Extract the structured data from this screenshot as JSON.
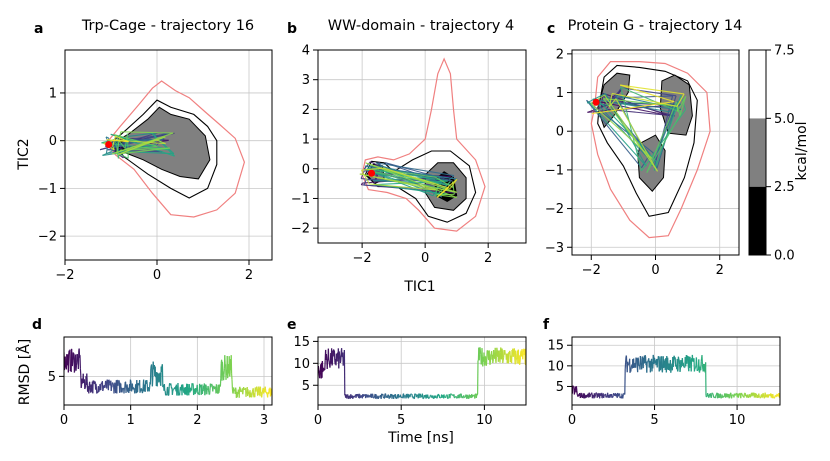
{
  "chart_data": [
    {
      "type": "contour",
      "panel": "a",
      "title": "Trp-Cage - trajectory 16",
      "xlabel": "",
      "ylabel": "TIC2",
      "xlim": [
        -2,
        2.5
      ],
      "ylim": [
        -2.5,
        1.9
      ],
      "xticks": [
        "−2",
        "0",
        "2"
      ],
      "yticks": [
        "−2",
        "−1",
        "0",
        "1"
      ],
      "grid": true,
      "start_point": {
        "x": -1.05,
        "y": -0.08
      },
      "outline_outer": [
        [
          -1.1,
          -0.05
        ],
        [
          -0.8,
          0.3
        ],
        [
          -0.4,
          0.75
        ],
        [
          -0.1,
          1.1
        ],
        [
          0.1,
          1.25
        ],
        [
          0.4,
          1.05
        ],
        [
          0.7,
          0.9
        ],
        [
          1.05,
          0.6
        ],
        [
          1.35,
          0.35
        ],
        [
          1.7,
          0.05
        ],
        [
          1.9,
          -0.45
        ],
        [
          1.7,
          -1.1
        ],
        [
          1.3,
          -1.45
        ],
        [
          0.8,
          -1.6
        ],
        [
          0.3,
          -1.55
        ],
        [
          -0.1,
          -1.1
        ],
        [
          -0.5,
          -0.6
        ],
        [
          -0.9,
          -0.3
        ]
      ],
      "outline_inner": [
        [
          -1.0,
          -0.05
        ],
        [
          -0.7,
          0.2
        ],
        [
          -0.3,
          0.55
        ],
        [
          0.0,
          0.85
        ],
        [
          0.3,
          0.7
        ],
        [
          0.8,
          0.55
        ],
        [
          1.1,
          0.3
        ],
        [
          1.3,
          0.0
        ],
        [
          1.3,
          -0.5
        ],
        [
          1.1,
          -1.0
        ],
        [
          0.7,
          -1.2
        ],
        [
          0.3,
          -1.0
        ],
        [
          -0.2,
          -0.7
        ],
        [
          -0.7,
          -0.35
        ]
      ],
      "basin_gray": [
        [
          -0.95,
          -0.05
        ],
        [
          -0.6,
          0.15
        ],
        [
          -0.2,
          0.45
        ],
        [
          0.05,
          0.7
        ],
        [
          0.3,
          0.55
        ],
        [
          0.7,
          0.45
        ],
        [
          1.05,
          0.1
        ],
        [
          1.15,
          -0.4
        ],
        [
          0.9,
          -0.8
        ],
        [
          0.5,
          -0.75
        ],
        [
          0.1,
          -0.6
        ],
        [
          -0.3,
          -0.4
        ],
        [
          -0.7,
          -0.25
        ]
      ],
      "basin_black": [
        [
          -1.0,
          -0.1
        ],
        [
          -0.75,
          0.02
        ],
        [
          -0.7,
          -0.18
        ],
        [
          -0.9,
          -0.22
        ]
      ]
    },
    {
      "type": "contour",
      "panel": "b",
      "title": "WW-domain - trajectory 4",
      "xlabel": "TIC1",
      "ylabel": "",
      "xlim": [
        -3.4,
        3.2
      ],
      "ylim": [
        -2.5,
        4
      ],
      "xticks": [
        "−2",
        "0",
        "2"
      ],
      "yticks": [
        "−2",
        "−1",
        "0",
        "1",
        "2",
        "3",
        "4"
      ],
      "grid": true,
      "start_point": {
        "x": -1.7,
        "y": -0.15
      },
      "outline_outer": [
        [
          -2.0,
          -0.2
        ],
        [
          -1.9,
          0.3
        ],
        [
          -1.5,
          0.4
        ],
        [
          -1.0,
          0.3
        ],
        [
          -0.5,
          0.5
        ],
        [
          0.0,
          1.0
        ],
        [
          0.2,
          2.0
        ],
        [
          0.4,
          3.2
        ],
        [
          0.6,
          3.7
        ],
        [
          0.8,
          3.2
        ],
        [
          0.9,
          2.0
        ],
        [
          1.0,
          1.0
        ],
        [
          1.6,
          0.3
        ],
        [
          1.9,
          -0.6
        ],
        [
          1.6,
          -1.6
        ],
        [
          1.0,
          -2.1
        ],
        [
          0.3,
          -2.0
        ],
        [
          -0.2,
          -1.4
        ],
        [
          -0.6,
          -1.0
        ],
        [
          -1.2,
          -0.8
        ],
        [
          -1.8,
          -0.7
        ]
      ],
      "outline_inner": [
        [
          -1.9,
          -0.2
        ],
        [
          -1.7,
          0.25
        ],
        [
          -1.3,
          0.2
        ],
        [
          -1.0,
          -0.1
        ],
        [
          -0.4,
          0.3
        ],
        [
          0.2,
          0.6
        ],
        [
          0.8,
          0.6
        ],
        [
          1.4,
          0.1
        ],
        [
          1.6,
          -0.8
        ],
        [
          1.3,
          -1.5
        ],
        [
          0.7,
          -1.8
        ],
        [
          0.1,
          -1.6
        ],
        [
          -0.3,
          -1.0
        ],
        [
          -0.9,
          -0.6
        ],
        [
          -1.5,
          -0.6
        ]
      ],
      "basin_gray_1": [
        [
          -1.85,
          -0.2
        ],
        [
          -1.65,
          0.15
        ],
        [
          -1.35,
          0.1
        ],
        [
          -1.3,
          -0.35
        ],
        [
          -1.6,
          -0.5
        ]
      ],
      "basin_gray_2": [
        [
          0.0,
          -0.2
        ],
        [
          0.4,
          0.2
        ],
        [
          0.9,
          0.2
        ],
        [
          1.3,
          -0.3
        ],
        [
          1.3,
          -1.0
        ],
        [
          0.9,
          -1.4
        ],
        [
          0.3,
          -1.3
        ],
        [
          0.0,
          -0.8
        ]
      ],
      "basin_black": [
        [
          0.3,
          -0.4
        ],
        [
          0.6,
          -0.1
        ],
        [
          0.9,
          -0.3
        ],
        [
          1.0,
          -0.9
        ],
        [
          0.7,
          -1.1
        ],
        [
          0.35,
          -0.9
        ]
      ]
    },
    {
      "type": "contour",
      "panel": "c",
      "title": "Protein G - trajectory 14",
      "xlabel": "",
      "ylabel": "",
      "xlim": [
        -2.6,
        2.6
      ],
      "ylim": [
        -3.2,
        2.1
      ],
      "xticks": [
        "−2",
        "0",
        "2"
      ],
      "yticks": [
        "−3",
        "−2",
        "−1",
        "0",
        "1",
        "2"
      ],
      "grid": true,
      "start_point": {
        "x": -1.85,
        "y": 0.75
      },
      "outline_outer": [
        [
          -1.9,
          0.6
        ],
        [
          -1.8,
          1.4
        ],
        [
          -1.4,
          1.8
        ],
        [
          -0.5,
          1.8
        ],
        [
          0.3,
          1.75
        ],
        [
          1.0,
          1.5
        ],
        [
          1.6,
          1.0
        ],
        [
          1.7,
          0.0
        ],
        [
          1.3,
          -1.0
        ],
        [
          0.8,
          -2.0
        ],
        [
          0.4,
          -2.7
        ],
        [
          -0.2,
          -2.75
        ],
        [
          -0.8,
          -2.3
        ],
        [
          -1.4,
          -1.5
        ],
        [
          -1.8,
          -0.6
        ],
        [
          -2.0,
          0.2
        ]
      ],
      "outline_inner": [
        [
          -1.75,
          0.7
        ],
        [
          -1.6,
          1.4
        ],
        [
          -1.2,
          1.7
        ],
        [
          -0.5,
          1.65
        ],
        [
          0.3,
          1.55
        ],
        [
          1.0,
          1.3
        ],
        [
          1.3,
          0.8
        ],
        [
          1.2,
          -0.3
        ],
        [
          0.9,
          -1.2
        ],
        [
          0.4,
          -2.1
        ],
        [
          -0.2,
          -2.2
        ],
        [
          -0.6,
          -1.6
        ],
        [
          -1.0,
          -0.9
        ],
        [
          -1.5,
          -0.3
        ],
        [
          -1.8,
          0.2
        ]
      ],
      "basin_gray_1": [
        [
          -1.8,
          0.6
        ],
        [
          -1.6,
          1.2
        ],
        [
          -1.2,
          1.5
        ],
        [
          -0.8,
          1.45
        ],
        [
          -0.85,
          1.0
        ],
        [
          -1.3,
          0.4
        ],
        [
          -1.6,
          0.1
        ]
      ],
      "basin_gray_2": [
        [
          0.2,
          1.3
        ],
        [
          0.6,
          1.45
        ],
        [
          1.05,
          1.2
        ],
        [
          1.15,
          0.4
        ],
        [
          0.95,
          -0.1
        ],
        [
          0.4,
          -0.05
        ],
        [
          0.15,
          0.6
        ]
      ],
      "basin_gray_3": [
        [
          -0.45,
          -0.3
        ],
        [
          0.0,
          -0.1
        ],
        [
          0.3,
          -0.5
        ],
        [
          0.25,
          -1.2
        ],
        [
          -0.1,
          -1.55
        ],
        [
          -0.5,
          -1.2
        ],
        [
          -0.55,
          -0.6
        ]
      ],
      "colorbar": {
        "label": "kcal/mol",
        "ticks": [
          "0.0",
          "2.5",
          "5.0",
          "7.5"
        ],
        "levels": [
          {
            "from": 0,
            "to": 2.5,
            "color": "#000000"
          },
          {
            "from": 2.5,
            "to": 5.0,
            "color": "#808080"
          },
          {
            "from": 5.0,
            "to": 7.5,
            "color": "#ffffff"
          }
        ]
      }
    },
    {
      "type": "line",
      "panel": "d",
      "xlabel": "",
      "ylabel": "RMSD [Å]",
      "xlim": [
        0,
        3.12
      ],
      "ylim": [
        1,
        10.5
      ],
      "xticks": [
        "0",
        "1",
        "2",
        "3"
      ],
      "yticks": [
        "5"
      ],
      "grid": true,
      "colormap": "viridis",
      "segments": [
        {
          "from": 0.0,
          "to": 0.25,
          "mean": 7.2,
          "noise": 1.7
        },
        {
          "from": 0.25,
          "to": 0.35,
          "mean": 4.2,
          "noise": 1.2
        },
        {
          "from": 0.35,
          "to": 1.3,
          "mean": 3.6,
          "noise": 1.0
        },
        {
          "from": 1.3,
          "to": 1.48,
          "mean": 5.4,
          "noise": 1.8
        },
        {
          "from": 1.48,
          "to": 2.35,
          "mean": 3.2,
          "noise": 0.9
        },
        {
          "from": 2.35,
          "to": 2.52,
          "mean": 6.2,
          "noise": 1.8
        },
        {
          "from": 2.52,
          "to": 3.12,
          "mean": 2.8,
          "noise": 0.8
        }
      ]
    },
    {
      "type": "line",
      "panel": "e",
      "xlabel": "Time [ns]",
      "ylabel": "",
      "xlim": [
        0,
        12.5
      ],
      "ylim": [
        0.5,
        16
      ],
      "xticks": [
        "0",
        "5",
        "10"
      ],
      "yticks": [
        "5",
        "10",
        "15"
      ],
      "grid": true,
      "colormap": "viridis",
      "segments": [
        {
          "from": 0.0,
          "to": 0.4,
          "mean": 8.5,
          "noise": 2.5
        },
        {
          "from": 0.4,
          "to": 1.6,
          "mean": 11.0,
          "noise": 2.5
        },
        {
          "from": 1.6,
          "to": 9.6,
          "mean": 2.5,
          "noise": 0.6
        },
        {
          "from": 9.6,
          "to": 12.5,
          "mean": 11.5,
          "noise": 2.2
        }
      ]
    },
    {
      "type": "line",
      "panel": "f",
      "xlabel": "",
      "ylabel": "",
      "xlim": [
        0,
        12.6
      ],
      "ylim": [
        0.5,
        17
      ],
      "xticks": [
        "0",
        "5",
        "10"
      ],
      "yticks": [
        "5",
        "10",
        "15"
      ],
      "grid": true,
      "colormap": "viridis",
      "segments": [
        {
          "from": 0.0,
          "to": 0.3,
          "mean": 4.0,
          "noise": 1.3
        },
        {
          "from": 0.3,
          "to": 3.2,
          "mean": 2.8,
          "noise": 0.7
        },
        {
          "from": 3.2,
          "to": 8.1,
          "mean": 10.5,
          "noise": 2.2
        },
        {
          "from": 8.1,
          "to": 12.6,
          "mean": 2.8,
          "noise": 0.7
        }
      ]
    }
  ]
}
